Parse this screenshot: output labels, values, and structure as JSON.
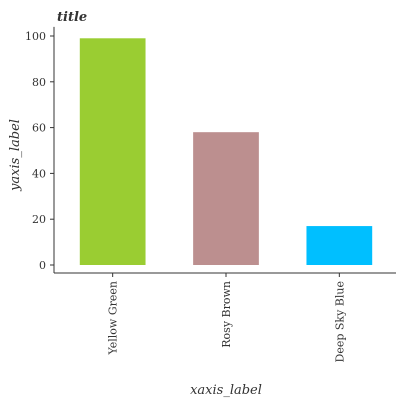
{
  "chart_data": {
    "type": "bar",
    "title": "title",
    "xlabel": "xaxis_label",
    "ylabel": "yaxis_label",
    "categories": [
      "Yellow Green",
      "Rosy Brown",
      "Deep Sky Blue"
    ],
    "values": [
      99,
      58,
      17
    ],
    "colors": [
      "#9acd32",
      "#bc8f8f",
      "#00bfff"
    ],
    "ylim": [
      0,
      104
    ],
    "yticks": [
      0,
      20,
      40,
      60,
      80,
      100
    ],
    "grid": false,
    "legend": "none"
  }
}
